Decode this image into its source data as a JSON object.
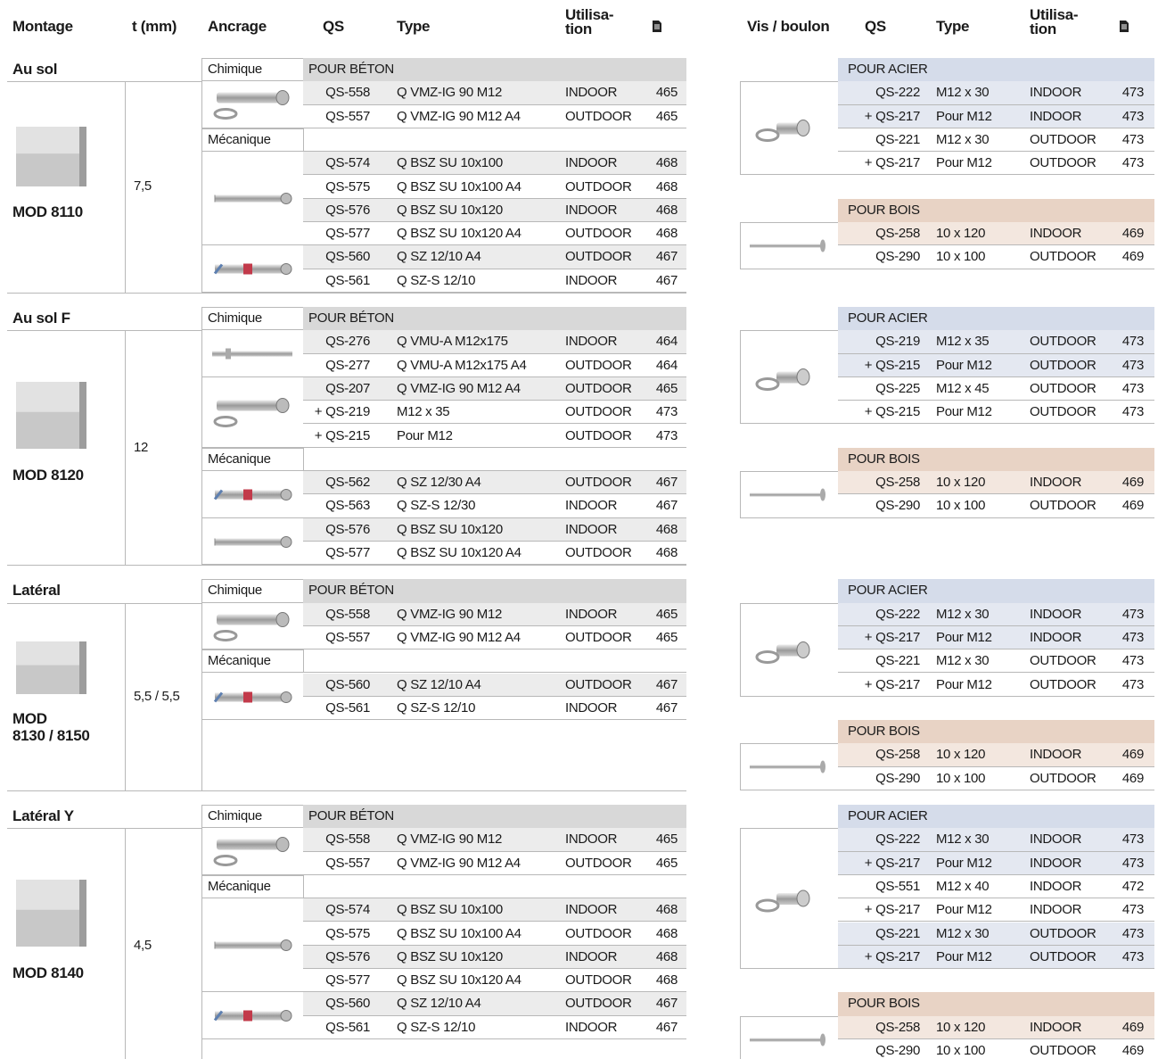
{
  "header": {
    "montage": "Montage",
    "thickness": "t (mm)",
    "anchorage": "Ancrage",
    "qs": "QS",
    "type": "Type",
    "use": "Utilisa-\ntion",
    "screw": "Vis / boulon",
    "qs2": "QS",
    "type2": "Type",
    "use2": "Utilisa-\ntion"
  },
  "sections": [
    {
      "title": "Au sol",
      "thickness": "7,5",
      "model": "MOD 8110",
      "anchors": [
        {
          "label": "Chimique",
          "category": "POUR BÉTON"
        },
        {
          "qs": "QS-558",
          "type": "Q VMZ-IG 90 M12",
          "use": "INDOOR",
          "page": 465,
          "shade": true
        },
        {
          "qs": "QS-557",
          "type": "Q VMZ-IG 90 M12 A4",
          "use": "OUTDOOR",
          "page": 465
        },
        {
          "label": "Mécanique"
        },
        {
          "qs": "QS-574",
          "type": "Q BSZ SU 10x100",
          "use": "INDOOR",
          "page": 468,
          "shade": true
        },
        {
          "qs": "QS-575",
          "type": "Q BSZ SU 10x100 A4",
          "use": "OUTDOOR",
          "page": 468
        },
        {
          "qs": "QS-576",
          "type": "Q BSZ SU 10x120",
          "use": "INDOOR",
          "page": 468,
          "shade": true
        },
        {
          "qs": "QS-577",
          "type": "Q BSZ SU 10x120 A4",
          "use": "OUTDOOR",
          "page": 468
        },
        {
          "qs": "QS-560",
          "type": "Q SZ 12/10 A4",
          "use": "OUTDOOR",
          "page": 467,
          "shade": true
        },
        {
          "qs": "QS-561",
          "type": "Q SZ-S 12/10",
          "use": "INDOOR",
          "page": 467
        }
      ],
      "steel": {
        "category": "POUR ACIER",
        "rows": [
          {
            "qs": "QS-222",
            "type": "M12 x 30",
            "use": "INDOOR",
            "page": 473,
            "shade": true
          },
          {
            "qs": "+ QS-217",
            "type": "Pour M12",
            "use": "INDOOR",
            "page": 473,
            "shade": true
          },
          {
            "qs": "QS-221",
            "type": "M12 x 30",
            "use": "OUTDOOR",
            "page": 473
          },
          {
            "qs": "+ QS-217",
            "type": "Pour M12",
            "use": "OUTDOOR",
            "page": 473
          }
        ]
      },
      "wood": {
        "category": "POUR BOIS",
        "rows": [
          {
            "qs": "QS-258",
            "type": "10 x 120",
            "use": "INDOOR",
            "page": 469,
            "shade": true
          },
          {
            "qs": "QS-290",
            "type": "10 x 100",
            "use": "OUTDOOR",
            "page": 469
          }
        ]
      }
    },
    {
      "title": "Au sol F",
      "thickness": "12",
      "model": "MOD 8120",
      "anchors": [
        {
          "label": "Chimique",
          "category": "POUR BÉTON"
        },
        {
          "qs": "QS-276",
          "type": "Q VMU-A M12x175",
          "use": "INDOOR",
          "page": 464,
          "shade": true
        },
        {
          "qs": "QS-277",
          "type": "Q VMU-A M12x175 A4",
          "use": "OUTDOOR",
          "page": 464
        },
        {
          "qs": "QS-207",
          "type": "Q VMZ-IG 90 M12 A4",
          "use": "OUTDOOR",
          "page": 465,
          "shade": true
        },
        {
          "qs": "+ QS-219",
          "type": "M12 x 35",
          "use": "OUTDOOR",
          "page": 473
        },
        {
          "qs": "+ QS-215",
          "type": "Pour M12",
          "use": "OUTDOOR",
          "page": 473
        },
        {
          "label": "Mécanique"
        },
        {
          "qs": "QS-562",
          "type": "Q SZ 12/30 A4",
          "use": "OUTDOOR",
          "page": 467,
          "shade": true
        },
        {
          "qs": "QS-563",
          "type": "Q SZ-S 12/30",
          "use": "INDOOR",
          "page": 467
        },
        {
          "qs": "QS-576",
          "type": "Q BSZ SU 10x120",
          "use": "INDOOR",
          "page": 468,
          "shade": true
        },
        {
          "qs": "QS-577",
          "type": "Q BSZ SU 10x120 A4",
          "use": "OUTDOOR",
          "page": 468
        }
      ],
      "steel": {
        "category": "POUR ACIER",
        "rows": [
          {
            "qs": "QS-219",
            "type": "M12 x 35",
            "use": "OUTDOOR",
            "page": 473,
            "shade": true
          },
          {
            "qs": "+ QS-215",
            "type": "Pour M12",
            "use": "OUTDOOR",
            "page": 473,
            "shade": true
          },
          {
            "qs": "QS-225",
            "type": "M12 x 45",
            "use": "OUTDOOR",
            "page": 473
          },
          {
            "qs": "+ QS-215",
            "type": "Pour M12",
            "use": "OUTDOOR",
            "page": 473
          }
        ]
      },
      "wood": {
        "category": "POUR BOIS",
        "rows": [
          {
            "qs": "QS-258",
            "type": "10 x 120",
            "use": "INDOOR",
            "page": 469,
            "shade": true
          },
          {
            "qs": "QS-290",
            "type": "10 x 100",
            "use": "OUTDOOR",
            "page": 469
          }
        ]
      }
    },
    {
      "title": "Latéral",
      "thickness": "5,5 / 5,5",
      "model": "MOD\n8130 / 8150",
      "anchors": [
        {
          "label": "Chimique",
          "category": "POUR BÉTON"
        },
        {
          "qs": "QS-558",
          "type": "Q VMZ-IG 90 M12",
          "use": "INDOOR",
          "page": 465,
          "shade": true
        },
        {
          "qs": "QS-557",
          "type": "Q VMZ-IG 90 M12 A4",
          "use": "OUTDOOR",
          "page": 465
        },
        {
          "label": "Mécanique"
        },
        {
          "qs": "QS-560",
          "type": "Q SZ 12/10 A4",
          "use": "OUTDOOR",
          "page": 467,
          "shade": true
        },
        {
          "qs": "QS-561",
          "type": "Q SZ-S 12/10",
          "use": "INDOOR",
          "page": 467
        }
      ],
      "steel": {
        "category": "POUR ACIER",
        "rows": [
          {
            "qs": "QS-222",
            "type": "M12 x 30",
            "use": "INDOOR",
            "page": 473,
            "shade": true
          },
          {
            "qs": "+ QS-217",
            "type": "Pour M12",
            "use": "INDOOR",
            "page": 473,
            "shade": true
          },
          {
            "qs": "QS-221",
            "type": "M12 x 30",
            "use": "OUTDOOR",
            "page": 473
          },
          {
            "qs": "+ QS-217",
            "type": "Pour M12",
            "use": "OUTDOOR",
            "page": 473
          }
        ]
      },
      "wood": {
        "category": "POUR BOIS",
        "rows": [
          {
            "qs": "QS-258",
            "type": "10 x 120",
            "use": "INDOOR",
            "page": 469,
            "shade": true
          },
          {
            "qs": "QS-290",
            "type": "10 x 100",
            "use": "OUTDOOR",
            "page": 469
          }
        ]
      }
    },
    {
      "title": "Latéral Y",
      "thickness": "4,5",
      "model": "MOD 8140",
      "anchors": [
        {
          "label": "Chimique",
          "category": "POUR BÉTON"
        },
        {
          "qs": "QS-558",
          "type": "Q VMZ-IG 90 M12",
          "use": "INDOOR",
          "page": 465,
          "shade": true
        },
        {
          "qs": "QS-557",
          "type": "Q VMZ-IG 90 M12 A4",
          "use": "OUTDOOR",
          "page": 465
        },
        {
          "label": "Mécanique"
        },
        {
          "qs": "QS-574",
          "type": "Q BSZ SU 10x100",
          "use": "INDOOR",
          "page": 468,
          "shade": true
        },
        {
          "qs": "QS-575",
          "type": "Q BSZ SU 10x100 A4",
          "use": "OUTDOOR",
          "page": 468
        },
        {
          "qs": "QS-576",
          "type": "Q BSZ SU 10x120",
          "use": "INDOOR",
          "page": 468,
          "shade": true
        },
        {
          "qs": "QS-577",
          "type": "Q BSZ SU 10x120 A4",
          "use": "OUTDOOR",
          "page": 468
        },
        {
          "qs": "QS-560",
          "type": "Q SZ 12/10 A4",
          "use": "OUTDOOR",
          "page": 467,
          "shade": true
        },
        {
          "qs": "QS-561",
          "type": "Q SZ-S 12/10",
          "use": "INDOOR",
          "page": 467
        }
      ],
      "steel": {
        "category": "POUR ACIER",
        "rows": [
          {
            "qs": "QS-222",
            "type": "M12 x 30",
            "use": "INDOOR",
            "page": 473,
            "shade": true
          },
          {
            "qs": "+ QS-217",
            "type": "Pour M12",
            "use": "INDOOR",
            "page": 473,
            "shade": true
          },
          {
            "qs": "QS-551",
            "type": "M12 x 40",
            "use": "INDOOR",
            "page": 472
          },
          {
            "qs": "+ QS-217",
            "type": "Pour M12",
            "use": "INDOOR",
            "page": 473
          },
          {
            "qs": "QS-221",
            "type": "M12 x 30",
            "use": "OUTDOOR",
            "page": 473,
            "shade": true
          },
          {
            "qs": "+ QS-217",
            "type": "Pour M12",
            "use": "OUTDOOR",
            "page": 473,
            "shade": true
          }
        ]
      },
      "wood": {
        "category": "POUR BOIS",
        "rows": [
          {
            "qs": "QS-258",
            "type": "10 x 120",
            "use": "INDOOR",
            "page": 469,
            "shade": true
          },
          {
            "qs": "QS-290",
            "type": "10 x 100",
            "use": "OUTDOOR",
            "page": 469
          }
        ]
      }
    }
  ]
}
